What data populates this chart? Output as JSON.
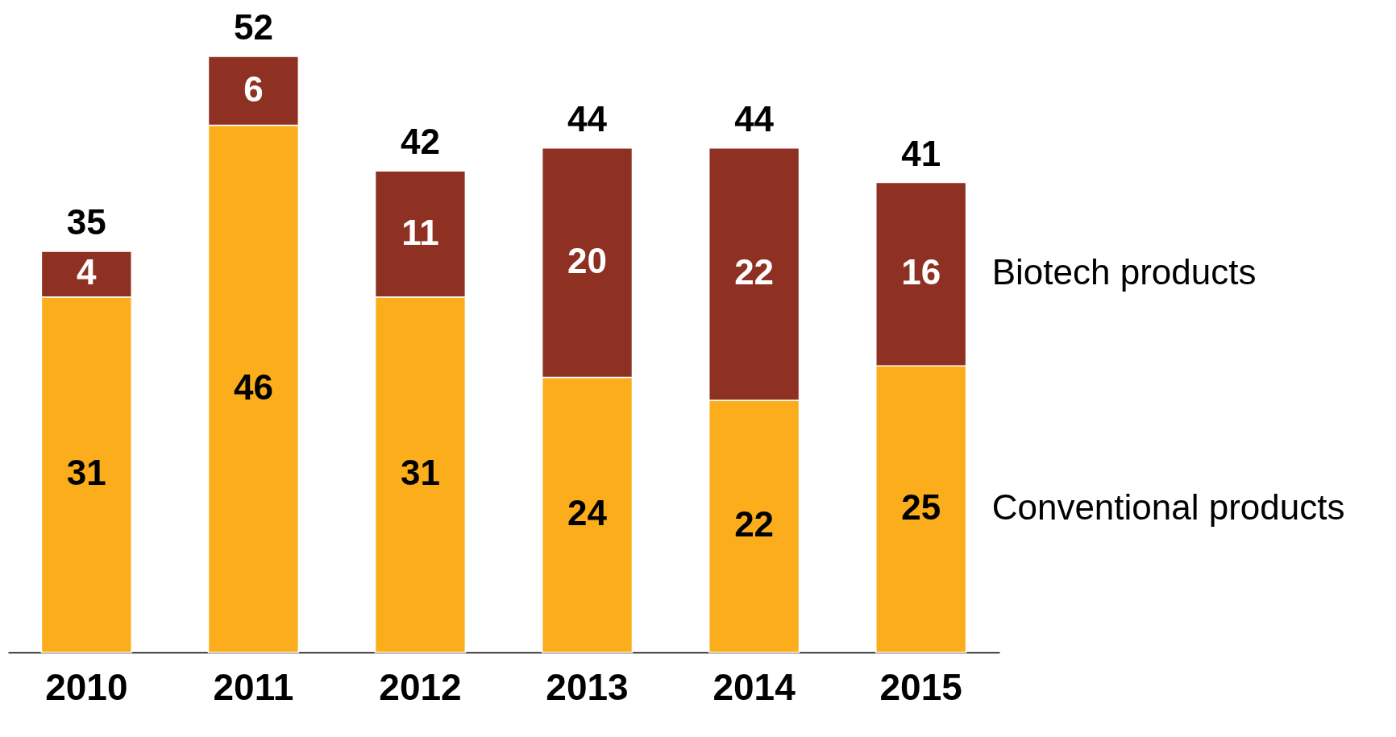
{
  "chart_data": {
    "type": "bar",
    "stacked": true,
    "data_labels": true,
    "categories": [
      "2010",
      "2011",
      "2012",
      "2013",
      "2014",
      "2015"
    ],
    "series": [
      {
        "name": "Conventional products",
        "color": "#fbad1b",
        "values": [
          31,
          46,
          31,
          24,
          22,
          25
        ]
      },
      {
        "name": "Biotech products",
        "color": "#8f3122",
        "values": [
          4,
          6,
          11,
          20,
          22,
          16
        ]
      }
    ],
    "totals": [
      "35",
      "52",
      "42",
      "44",
      "44",
      "41"
    ]
  }
}
